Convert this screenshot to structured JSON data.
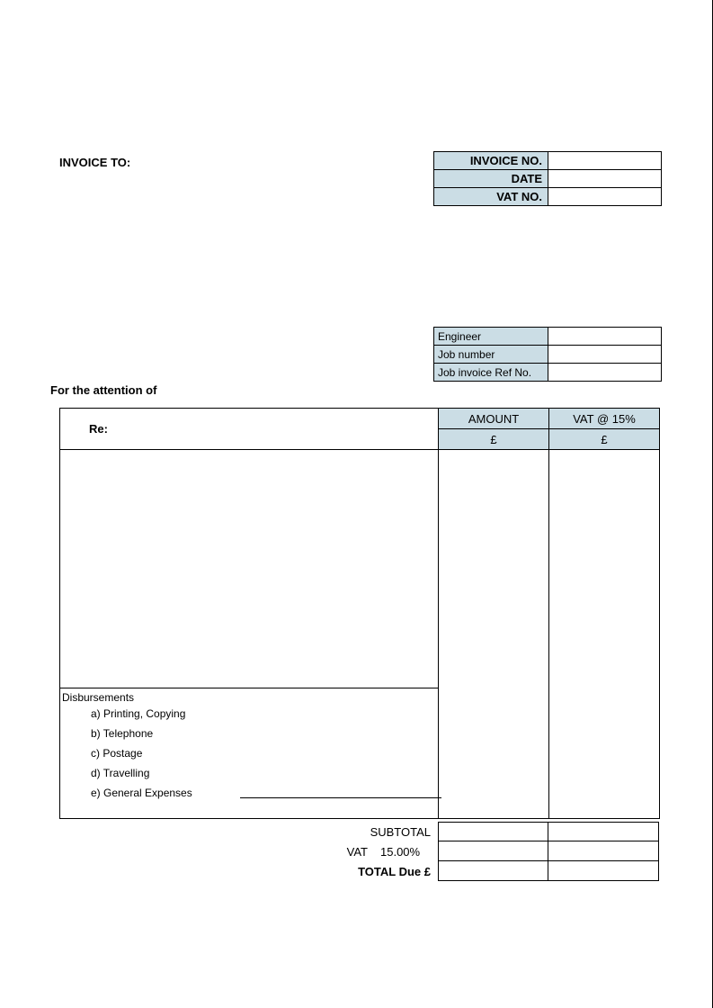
{
  "header": {
    "invoice_to": "INVOICE TO:"
  },
  "meta": {
    "rows": [
      {
        "label": "INVOICE NO.",
        "value": ""
      },
      {
        "label": "DATE",
        "value": ""
      },
      {
        "label": "VAT NO.",
        "value": ""
      }
    ],
    "label_bg": "#cbdde5"
  },
  "job": {
    "rows": [
      {
        "label": "Engineer",
        "value": ""
      },
      {
        "label": "Job number",
        "value": ""
      },
      {
        "label": "Job invoice Ref No.",
        "value": ""
      }
    ],
    "label_bg": "#cbdde5"
  },
  "attention": "For the attention of",
  "main": {
    "re_label": "Re:",
    "amount_header": "AMOUNT",
    "vat_header": "VAT @ 15%",
    "amount_currency": "£",
    "vat_currency": "£",
    "header_bg": "#cbdde5",
    "disbursements_title": "Disbursements",
    "disbursements": [
      "a) Printing, Copying",
      "b) Telephone",
      "c) Postage",
      "d) Travelling",
      "e) General Expenses"
    ]
  },
  "totals": {
    "subtotal_label": "SUBTOTAL",
    "vat_label": "VAT",
    "vat_rate": "15.00%",
    "total_label": "TOTAL Due £",
    "subtotal_amount": "",
    "subtotal_vat": "",
    "vat_amount": "",
    "vat_vat": "",
    "total_amount": "",
    "total_vat": ""
  },
  "style": {
    "page_bg": "#ffffff",
    "border_color": "#000000",
    "font_family": "Verdana"
  }
}
